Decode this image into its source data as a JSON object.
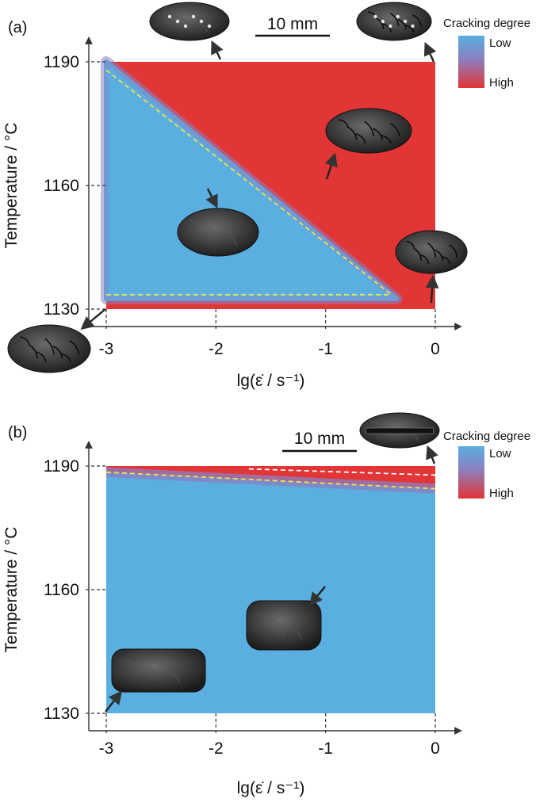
{
  "chart_data": [
    {
      "type": "heatmap",
      "panel_label": "(a)",
      "xlabel": "lg(ε̇ / s⁻¹)",
      "ylabel": "Temperature / °C",
      "x_ticks": [
        -3,
        -2,
        -1,
        0
      ],
      "y_ticks": [
        1130,
        1160,
        1190
      ],
      "xlim": [
        -3,
        0
      ],
      "ylim": [
        1130,
        1190
      ],
      "legend": {
        "title": "Cracking degree",
        "low": "Low",
        "high": "High",
        "low_color": "#5aaee0",
        "high_color": "#e23535"
      },
      "scale_bar_label": "10 mm",
      "low_crack_region": [
        [
          -3,
          1132.5
        ],
        [
          -0.35,
          1132.5
        ],
        [
          -3,
          1190
        ]
      ],
      "boundary_lines": [
        {
          "style": "yellow-dashed",
          "points": [
            [
              -3,
              1188
            ],
            [
              -0.4,
              1133.5
            ]
          ]
        },
        {
          "style": "yellow-dashed",
          "points": [
            [
              -3,
              1133.5
            ],
            [
              -0.4,
              1133.5
            ]
          ]
        }
      ]
    },
    {
      "type": "heatmap",
      "panel_label": "(b)",
      "xlabel": "lg(ε̇ / s⁻¹)",
      "ylabel": "Temperature / °C",
      "x_ticks": [
        -3,
        -2,
        -1,
        0
      ],
      "y_ticks": [
        1130,
        1160,
        1190
      ],
      "xlim": [
        -3,
        0
      ],
      "ylim": [
        1130,
        1190
      ],
      "legend": {
        "title": "Cracking degree",
        "low": "Low",
        "high": "High",
        "low_color": "#5aaee0",
        "high_color": "#e23535"
      },
      "scale_bar_label": "10 mm",
      "low_crack_region": [
        [
          -3,
          1130
        ],
        [
          0,
          1130
        ],
        [
          0,
          1184.5
        ],
        [
          -3,
          1188.5
        ]
      ],
      "boundary_lines": [
        {
          "style": "yellow-dashed",
          "points": [
            [
              -3,
              1188.5
            ],
            [
              0,
              1184.5
            ]
          ]
        },
        {
          "style": "white-dashed",
          "points": [
            [
              -1.7,
              1189.3
            ],
            [
              0,
              1187.8
            ]
          ]
        }
      ]
    }
  ]
}
